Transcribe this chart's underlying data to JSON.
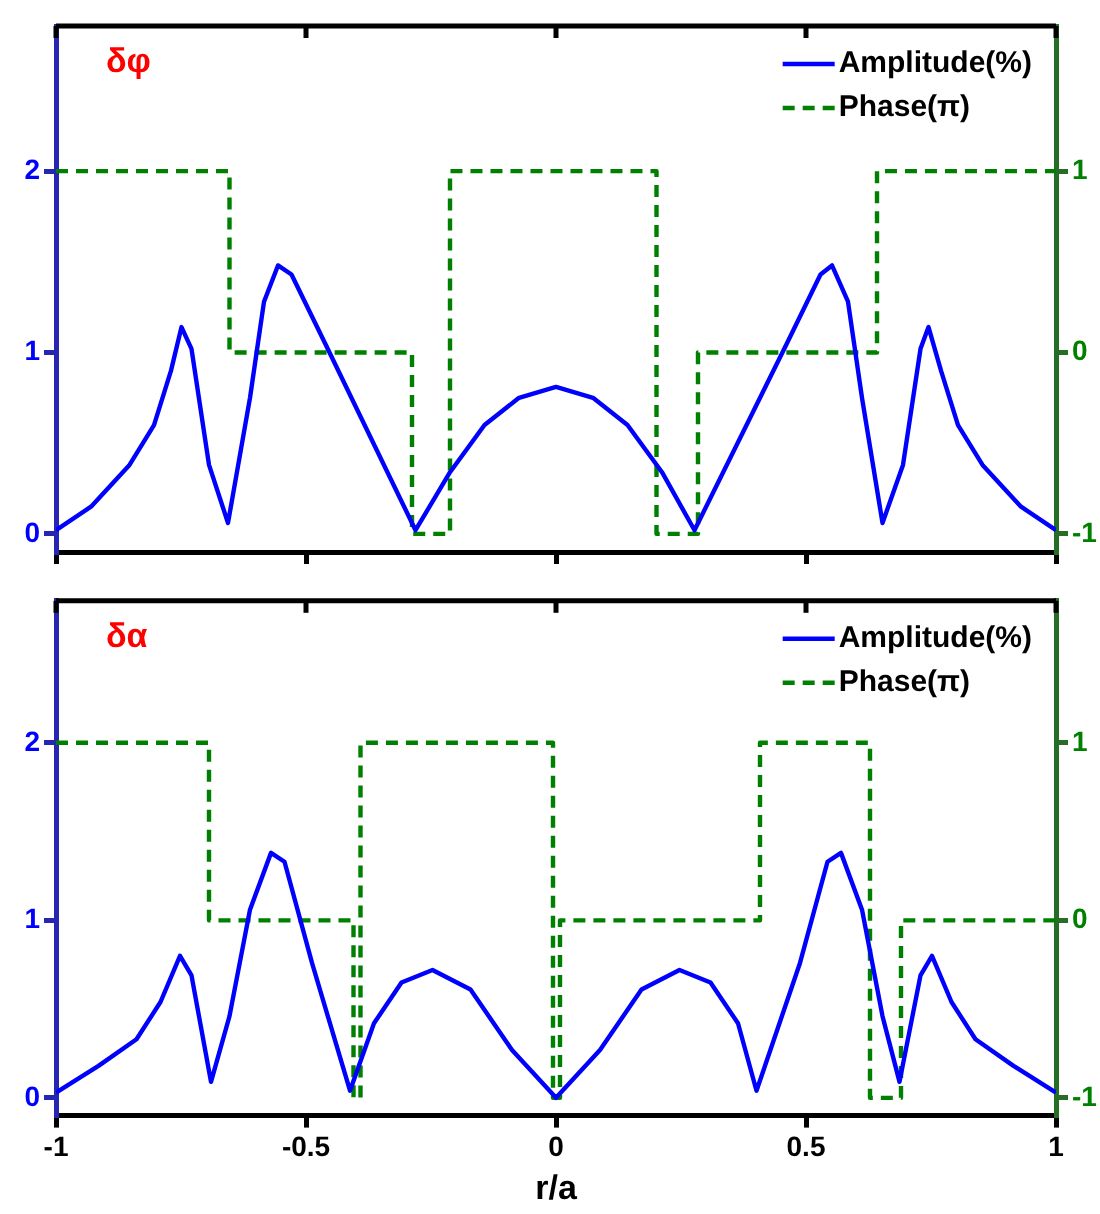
{
  "chart_data": [
    {
      "type": "line",
      "annotations": [
        "δφ"
      ],
      "xlim": [
        -1,
        1
      ],
      "xticks": [
        -1,
        -0.5,
        0,
        0.5,
        1
      ],
      "ylim": [
        -0.1,
        2.8
      ],
      "yticks": [
        0,
        1,
        2
      ],
      "y2lim": [
        -1.1,
        1.8
      ],
      "y2ticks": [
        -1,
        0,
        1
      ],
      "grid": false,
      "legend": "top right",
      "marker": "none",
      "tick_labels": "y",
      "series": [
        {
          "name": "Amplitude(%)",
          "color": "#0000ff",
          "line_style": "solid",
          "x": [
            -1,
            -0.93,
            -0.853,
            -0.804,
            -0.77,
            -0.749,
            -0.729,
            -0.694,
            -0.656,
            -0.612,
            -0.584,
            -0.556,
            -0.529,
            -0.46,
            -0.281,
            -0.212,
            -0.143,
            -0.074,
            0,
            0.074,
            0.143,
            0.212,
            0.277,
            0.46,
            0.529,
            0.552,
            0.584,
            0.612,
            0.653,
            0.694,
            0.729,
            0.745,
            0.77,
            0.804,
            0.853,
            0.93,
            1
          ],
          "values": [
            0.02,
            0.15,
            0.38,
            0.6,
            0.9,
            1.14,
            1.02,
            0.38,
            0.06,
            0.75,
            1.28,
            1.48,
            1.43,
            1.04,
            0.02,
            0.34,
            0.6,
            0.75,
            0.81,
            0.75,
            0.6,
            0.34,
            0.02,
            1.04,
            1.43,
            1.48,
            1.28,
            0.75,
            0.06,
            0.38,
            1.02,
            1.14,
            0.9,
            0.6,
            0.38,
            0.15,
            0.02
          ]
        },
        {
          "name": "Phase(π)",
          "type": "step",
          "axis": "y2",
          "color": "#008000",
          "line_style": "dashed",
          "x": [
            -1,
            -0.653,
            -0.288,
            -0.212,
            0.201,
            0.284,
            0.642,
            1
          ],
          "values": [
            1,
            0,
            -1,
            1,
            -1,
            0,
            1,
            1
          ]
        }
      ]
    },
    {
      "type": "line",
      "annotations": [
        "δα"
      ],
      "xlabel": "r/a",
      "xlim": [
        -1,
        1
      ],
      "xticks": [
        -1,
        -0.5,
        0,
        0.5,
        1
      ],
      "ylim": [
        -0.1,
        2.8
      ],
      "yticks": [
        0,
        1,
        2
      ],
      "y2lim": [
        -1.1,
        1.8
      ],
      "y2ticks": [
        -1,
        0,
        1
      ],
      "grid": false,
      "legend": "top right",
      "marker": "none",
      "series": [
        {
          "name": "Amplitude(%)",
          "color": "#0000ff",
          "line_style": "solid",
          "x": [
            -1,
            -0.915,
            -0.839,
            -0.791,
            -0.752,
            -0.729,
            -0.69,
            -0.653,
            -0.612,
            -0.57,
            -0.543,
            -0.488,
            -0.412,
            -0.364,
            -0.309,
            -0.247,
            -0.171,
            -0.088,
            0,
            0.088,
            0.171,
            0.247,
            0.309,
            0.364,
            0.401,
            0.488,
            0.543,
            0.57,
            0.612,
            0.653,
            0.687,
            0.729,
            0.752,
            0.791,
            0.839,
            0.915,
            1
          ],
          "values": [
            0.03,
            0.18,
            0.33,
            0.54,
            0.8,
            0.69,
            0.09,
            0.46,
            1.06,
            1.38,
            1.33,
            0.76,
            0.04,
            0.42,
            0.65,
            0.72,
            0.61,
            0.27,
            0,
            0.27,
            0.61,
            0.72,
            0.65,
            0.42,
            0.04,
            0.76,
            1.33,
            1.38,
            1.06,
            0.46,
            0.09,
            0.69,
            0.8,
            0.54,
            0.33,
            0.18,
            0.03
          ]
        },
        {
          "name": "Phase(π)",
          "type": "step",
          "axis": "y2",
          "color": "#008000",
          "line_style": "dashed",
          "x": [
            -1,
            -0.694,
            -0.405,
            -0.391,
            -0.006,
            0.008,
            0.408,
            0.628,
            0.69,
            1
          ],
          "values": [
            1,
            0,
            -1,
            1,
            -1,
            0,
            1,
            -1,
            0,
            0
          ]
        }
      ]
    }
  ]
}
